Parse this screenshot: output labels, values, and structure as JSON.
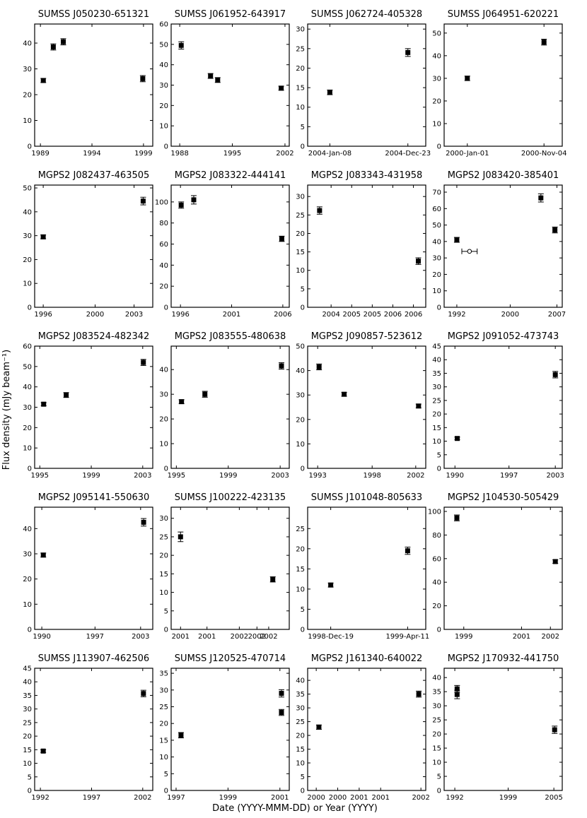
{
  "ylabel": "Flux density (mJy beam⁻¹)",
  "xlabel": "Date (YYYY-MMM-DD) or Year (YYYY)",
  "chart_data": [
    {
      "type": "scatter",
      "title": "SUMSS J050230-651321",
      "color": "#000000",
      "x": [
        1989.28,
        1990.25,
        1991.22,
        1998.93
      ],
      "values": [
        25.5,
        38.5,
        40.5,
        26.2
      ],
      "errors": [
        0.8,
        1.2,
        1.2,
        1.2
      ],
      "xlim": [
        1988.44,
        1999.9
      ],
      "ylim": [
        0,
        47.4
      ],
      "xticks": [
        1989,
        1994,
        1999
      ],
      "yticks": [
        0,
        10,
        20,
        30,
        40
      ]
    },
    {
      "type": "scatter",
      "title": "SUMSS J061952-643917",
      "color": "#000000",
      "x": [
        1988.2,
        1992.1,
        1993.05,
        2001.5
      ],
      "values": [
        49.5,
        34.5,
        32.5,
        28.5
      ],
      "errors": [
        1.8,
        1.2,
        1.2,
        1
      ],
      "xlim": [
        1986.86,
        2002.57
      ],
      "ylim": [
        0,
        60
      ],
      "xticks": [
        1988,
        1995,
        2002
      ],
      "yticks": [
        0,
        10,
        20,
        30,
        40,
        50,
        60
      ]
    },
    {
      "type": "scatter",
      "title": "SUMSS J062724-405328",
      "color": "#000000",
      "x": [
        2004.019,
        2004.975
      ],
      "values": [
        13.8,
        24
      ],
      "errors": [
        0.6,
        1.0
      ],
      "xlim": [
        2003.747,
        2005.194
      ],
      "ylim": [
        0,
        31.3
      ],
      "xticks": [
        {
          "value": 2004.019,
          "label": "2004-Jan-08"
        },
        {
          "value": 2004.975,
          "label": "2004-Dec-23"
        }
      ],
      "yticks": [
        0,
        5,
        10,
        15,
        20,
        25,
        30
      ]
    },
    {
      "type": "scatter",
      "title": "SUMSS J064951-620221",
      "color": "#000000",
      "x": [
        2000.0,
        2000.84
      ],
      "values": [
        30,
        46
      ],
      "errors": [
        1,
        1.3
      ],
      "xlim": [
        1999.746,
        2001.04
      ],
      "ylim": [
        0,
        54
      ],
      "xticks": [
        {
          "value": 2000.0,
          "label": "2000-Jan-01"
        },
        {
          "value": 2000.84,
          "label": "2000-Nov-04"
        }
      ],
      "yticks": [
        0,
        10,
        20,
        30,
        40,
        50
      ]
    },
    {
      "type": "scatter",
      "title": "MGPS2 J082437-463505",
      "color": "#000000",
      "x": [
        1996.0,
        2003.7
      ],
      "values": [
        29.5,
        44.5
      ],
      "errors": [
        0.8,
        1.6
      ],
      "xlim": [
        1995.34,
        2004.44
      ],
      "ylim": [
        0,
        51.2
      ],
      "xticks": [
        1996,
        2000,
        2003
      ],
      "yticks": [
        0,
        10,
        20,
        30,
        40,
        50
      ]
    },
    {
      "type": "scatter",
      "title": "MGPS2 J083322-444141",
      "color": "#000000",
      "x": [
        1996.07,
        1997.3,
        2005.9
      ],
      "values": [
        97,
        102,
        65
      ],
      "errors": [
        3,
        4,
        2.5
      ],
      "xlim": [
        1995.09,
        2006.63
      ],
      "ylim": [
        0,
        116
      ],
      "xticks": [
        1996,
        2001,
        2006
      ],
      "yticks": [
        0,
        20,
        40,
        60,
        80,
        100
      ]
    },
    {
      "type": "scatter",
      "title": "MGPS2 J083343-431958",
      "color": "#000000",
      "x": [
        2004.22,
        2006.62
      ],
      "values": [
        26.2,
        12.5
      ],
      "errors": [
        1,
        0.9
      ],
      "xlim": [
        2003.93,
        2006.8
      ],
      "ylim": [
        0,
        33.1
      ],
      "xticks": [
        {
          "value": 2004.5,
          "label": "2004"
        },
        {
          "value": 2005.0,
          "label": "2005"
        },
        {
          "value": 2005.5,
          "label": "2005"
        },
        {
          "value": 2006.0,
          "label": "2006"
        },
        {
          "value": 2006.5,
          "label": "2006"
        }
      ],
      "yticks": [
        0,
        5,
        10,
        15,
        20,
        25,
        30
      ]
    },
    {
      "type": "scatter",
      "title": "MGPS2 J083420-385401",
      "color": "#000000",
      "x": [
        1992.0,
        1993.9,
        2004.6,
        2006.7
      ],
      "values": [
        41,
        34,
        66.5,
        47
      ],
      "errors": [
        1.5,
        null,
        2.5,
        1.8
      ],
      "x_errors": [
        null,
        1.15,
        null,
        null
      ],
      "marker_fill": [
        "#000000",
        "#ffffff",
        "#000000",
        "#000000"
      ],
      "xlim": [
        1990.1,
        2007.8
      ],
      "ylim": [
        0,
        74.3
      ],
      "xticks": [
        1992,
        2000,
        2007
      ],
      "yticks": [
        0,
        10,
        20,
        30,
        40,
        50,
        60,
        70
      ]
    },
    {
      "type": "scatter",
      "title": "MGPS2 J083524-482342",
      "color": "#000000",
      "x": [
        1995.3,
        1997.05,
        2003.05
      ],
      "values": [
        31.5,
        36,
        52
      ],
      "errors": [
        0.8,
        1.2,
        1.5
      ],
      "xlim": [
        1994.6,
        2003.78
      ],
      "ylim": [
        0,
        60
      ],
      "xticks": [
        1995,
        1999,
        2003
      ],
      "yticks": [
        0,
        10,
        20,
        30,
        40,
        50,
        60
      ]
    },
    {
      "type": "scatter",
      "title": "MGPS2 J083555-480638",
      "color": "#000000",
      "x": [
        1995.4,
        1997.2,
        2003.1
      ],
      "values": [
        27,
        30,
        41.5
      ],
      "errors": [
        0.8,
        1.2,
        1.3
      ],
      "xlim": [
        1994.6,
        2003.7
      ],
      "ylim": [
        0,
        49.5
      ],
      "xticks": [
        1995,
        1999,
        2003
      ],
      "yticks": [
        0,
        10,
        20,
        30,
        40
      ]
    },
    {
      "type": "scatter",
      "title": "MGPS2 J090857-523612",
      "color": "#000000",
      "x": [
        1993.13,
        1995.43,
        2002.26
      ],
      "values": [
        41.5,
        30.3,
        25.5
      ],
      "errors": [
        1.2,
        0.8,
        0.8
      ],
      "xlim": [
        1992.08,
        2002.92
      ],
      "ylim": [
        0,
        50
      ],
      "xticks": [
        1993,
        1998,
        2002
      ],
      "yticks": [
        0,
        10,
        20,
        30,
        40,
        50
      ]
    },
    {
      "type": "scatter",
      "title": "MGPS2 J091052-473743",
      "color": "#000000",
      "x": [
        1990.3,
        2003.0
      ],
      "values": [
        11,
        34.5
      ],
      "errors": [
        0.5,
        1.2
      ],
      "xlim": [
        1988.6,
        2003.9
      ],
      "ylim": [
        0,
        45
      ],
      "xticks": [
        1990,
        1997,
        2003
      ],
      "yticks": [
        0,
        5,
        10,
        15,
        20,
        25,
        30,
        35,
        40,
        45
      ]
    },
    {
      "type": "scatter",
      "title": "MGPS2 J095141-550630",
      "color": "#000000",
      "x": [
        1990.2,
        2003.4
      ],
      "values": [
        29.5,
        42.5
      ],
      "errors": [
        0.8,
        1.5
      ],
      "xlim": [
        1989.06,
        2004.6
      ],
      "ylim": [
        0,
        48.5
      ],
      "xticks": [
        1990,
        1997,
        2003
      ],
      "yticks": [
        0,
        10,
        20,
        30,
        40
      ]
    },
    {
      "type": "scatter",
      "title": "SUMSS J100222-423135",
      "color": "#000000",
      "x": [
        2001.0,
        2002.57
      ],
      "values": [
        25,
        13.5
      ],
      "errors": [
        1.3,
        0.7
      ],
      "xlim": [
        2000.84,
        2002.85
      ],
      "ylim": [
        0,
        33
      ],
      "xticks": [
        {
          "value": 2001.0,
          "label": "2001"
        },
        {
          "value": 2001.45,
          "label": "2001"
        },
        {
          "value": 2002.0,
          "label": "2002"
        },
        {
          "value": 2002.3,
          "label": "2002"
        },
        {
          "value": 2002.5,
          "label": "2002"
        }
      ],
      "yticks": [
        0,
        5,
        10,
        15,
        20,
        25,
        30
      ]
    },
    {
      "type": "scatter",
      "title": "SUMSS J101048-805633",
      "color": "#000000",
      "x": [
        1998.967,
        1999.277
      ],
      "values": [
        11,
        19.5
      ],
      "errors": [
        0.5,
        0.9
      ],
      "xlim": [
        1998.874,
        1999.35
      ],
      "ylim": [
        0,
        30.3
      ],
      "xticks": [
        {
          "value": 1998.967,
          "label": "1998-Dec-19"
        },
        {
          "value": 1999.277,
          "label": "1999-Apr-11"
        }
      ],
      "yticks": [
        0,
        5,
        10,
        15,
        20,
        25
      ]
    },
    {
      "type": "scatter",
      "title": "MGPS2 J104530-505429",
      "color": "#000000",
      "x": [
        1998.76,
        2002.17
      ],
      "values": [
        94.5,
        57.5
      ],
      "errors": [
        2.5,
        1.5
      ],
      "xlim": [
        1998.32,
        2002.41
      ],
      "ylim": [
        0,
        103.6
      ],
      "xticks": [
        1999,
        2001,
        2002
      ],
      "yticks": [
        0,
        20,
        40,
        60,
        80,
        100
      ]
    },
    {
      "type": "scatter",
      "title": "SUMSS J113907-462506",
      "color": "#000000",
      "x": [
        1992.28,
        2002.07
      ],
      "values": [
        14.5,
        35.7
      ],
      "errors": [
        0.5,
        1.2
      ],
      "xlim": [
        1991.44,
        2002.98
      ],
      "ylim": [
        0,
        45
      ],
      "xticks": [
        1992,
        1997,
        2002
      ],
      "yticks": [
        0,
        5,
        10,
        15,
        20,
        25,
        30,
        35,
        40,
        45
      ]
    },
    {
      "type": "scatter",
      "title": "SUMSS J120525-470714",
      "color": "#000000",
      "x": [
        1997.19,
        2001.06,
        2001.06
      ],
      "values": [
        16.5,
        29,
        23.3
      ],
      "errors": [
        0.8,
        1.1,
        0.9
      ],
      "xlim": [
        1996.81,
        2001.36
      ],
      "ylim": [
        0,
        36.5
      ],
      "xticks": [
        1997,
        1999,
        2001
      ],
      "yticks": [
        0,
        5,
        10,
        15,
        20,
        25,
        30,
        35
      ]
    },
    {
      "type": "scatter",
      "title": "MGPS2 J161340-640022",
      "color": "#000000",
      "x": [
        1999.85,
        2001.71
      ],
      "values": [
        23,
        35
      ],
      "errors": [
        0.8,
        1.1
      ],
      "xlim": [
        1999.64,
        2001.84
      ],
      "ylim": [
        0,
        44.4
      ],
      "xticks": [
        {
          "value": 1999.8,
          "label": "2000"
        },
        {
          "value": 2000.2,
          "label": "2000"
        },
        {
          "value": 2000.6,
          "label": "2001"
        },
        {
          "value": 2001.0,
          "label": "2001"
        },
        {
          "value": 2001.75,
          "label": "2002"
        }
      ],
      "yticks": [
        0,
        5,
        10,
        15,
        20,
        25,
        30,
        35,
        40
      ]
    },
    {
      "type": "scatter",
      "title": "MGPS2 J170932-441750",
      "color": "#000000",
      "x": [
        1992.3,
        1992.3,
        2005.1
      ],
      "values": [
        34,
        36,
        21.5
      ],
      "errors": [
        1.5,
        1.2,
        1.3
      ],
      "xlim": [
        1990.6,
        2006.1
      ],
      "ylim": [
        0,
        43.3
      ],
      "xticks": [
        1992,
        1999,
        2005
      ],
      "yticks": [
        0,
        5,
        10,
        15,
        20,
        25,
        30,
        35,
        40
      ]
    }
  ]
}
